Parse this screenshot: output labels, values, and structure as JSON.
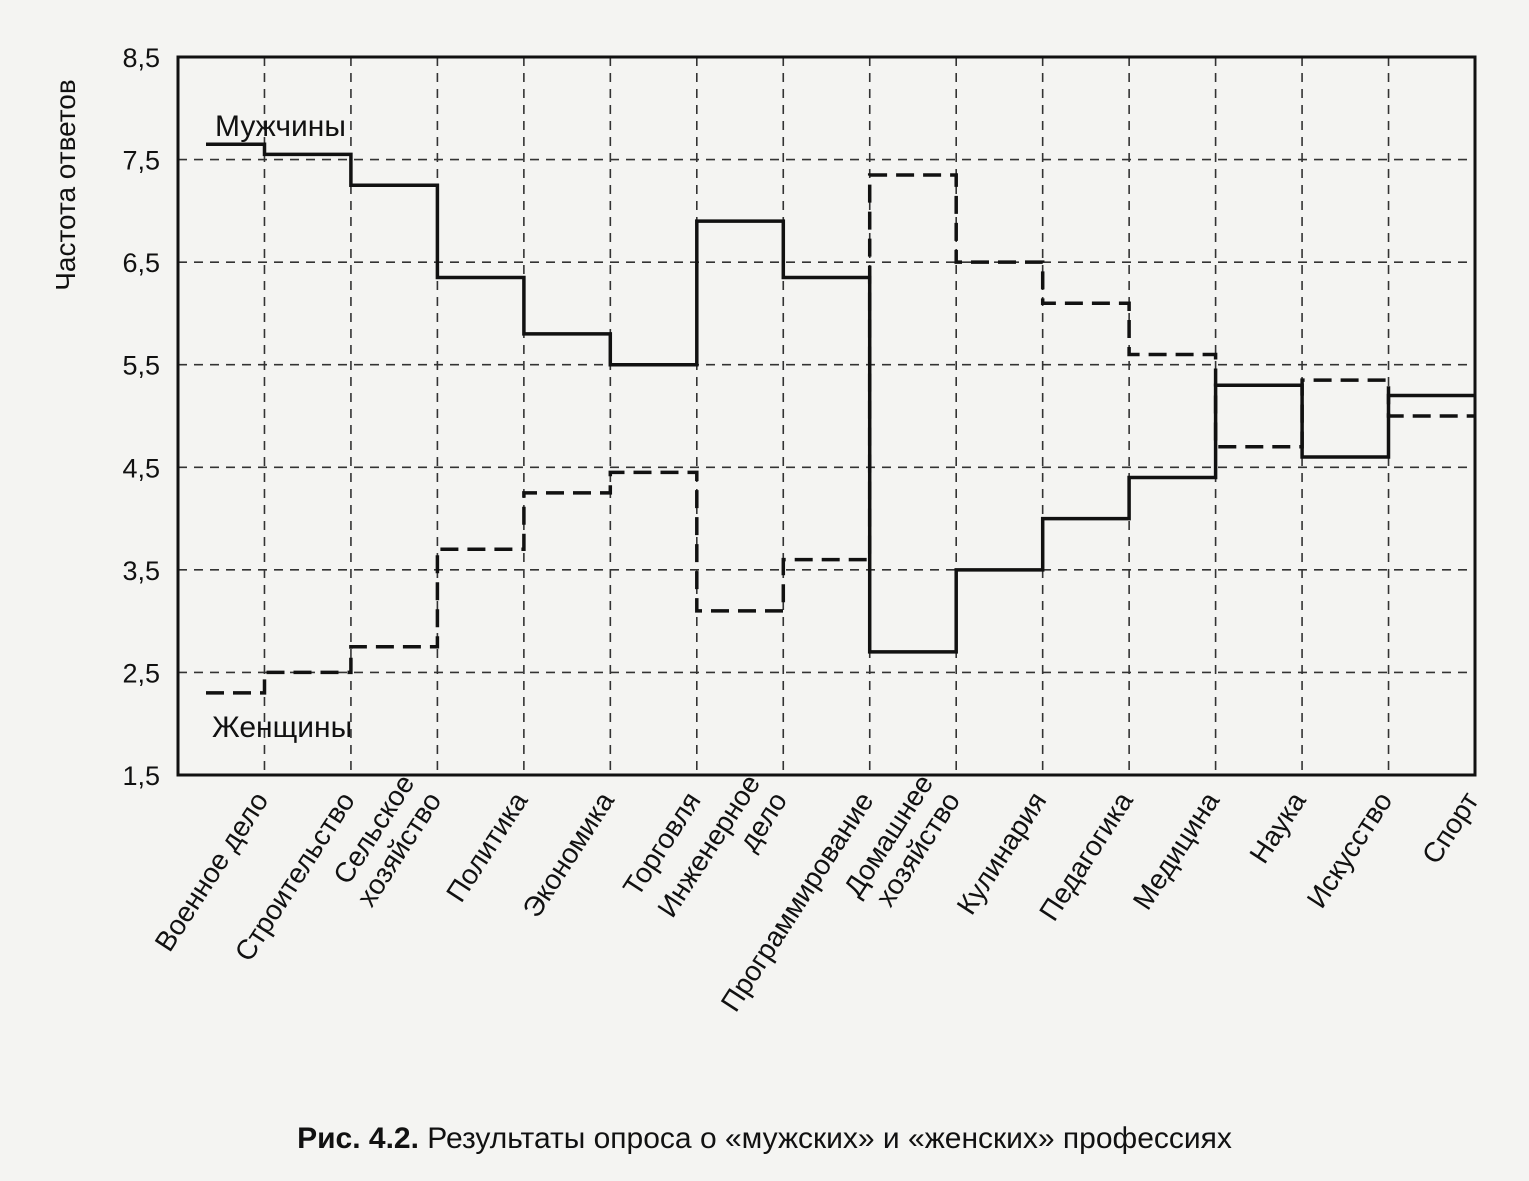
{
  "chart_data": {
    "type": "line",
    "step": true,
    "ylabel": "Частота ответов",
    "xlabel": "",
    "ylim": [
      1.5,
      8.5
    ],
    "yticks": [
      "1,5",
      "2,5",
      "3,5",
      "4,5",
      "5,5",
      "6,5",
      "7,5",
      "8,5"
    ],
    "ytick_values": [
      1.5,
      2.5,
      3.5,
      4.5,
      5.5,
      6.5,
      7.5,
      8.5
    ],
    "grid": true,
    "categories": [
      [
        "Военное дело"
      ],
      [
        "Строительство"
      ],
      [
        "Сельское",
        "хозяйство"
      ],
      [
        "Политика"
      ],
      [
        "Экономика"
      ],
      [
        "Торговля"
      ],
      [
        "Инженерное",
        "дело"
      ],
      [
        "Программирование"
      ],
      [
        "Домашнее",
        "хозяйство"
      ],
      [
        "Кулинария"
      ],
      [
        "Педагогика"
      ],
      [
        "Медицина"
      ],
      [
        "Наука"
      ],
      [
        "Искусство"
      ],
      [
        "Спорт"
      ]
    ],
    "series": [
      {
        "name": "Мужчины",
        "style": "solid",
        "values": [
          7.65,
          7.55,
          7.25,
          6.35,
          5.8,
          5.5,
          6.9,
          6.35,
          2.7,
          3.5,
          4.0,
          4.4,
          5.3,
          4.6,
          5.2
        ]
      },
      {
        "name": "Женщины",
        "style": "dashed",
        "values": [
          2.3,
          2.5,
          2.75,
          3.7,
          4.25,
          4.45,
          3.1,
          3.6,
          7.35,
          6.5,
          6.1,
          5.6,
          4.7,
          5.35,
          5.0
        ]
      }
    ]
  },
  "caption": {
    "label": "Рис. 4.2.",
    "text": " Результаты опроса о «мужских» и «женских» профессиях"
  }
}
